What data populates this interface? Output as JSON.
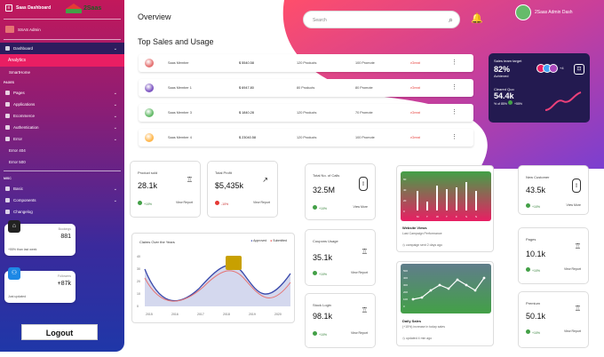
{
  "sidebar": {
    "brand": "Saas Dashboard",
    "user": "SSAS Admin",
    "items": [
      {
        "label": "Dashboard",
        "chev": "⌄"
      },
      {
        "label": "Analytics"
      },
      {
        "label": "SmartHome"
      },
      {
        "label": "PAGES"
      },
      {
        "label": "Pages",
        "chev": "⌄"
      },
      {
        "label": "Applications",
        "chev": "⌄"
      },
      {
        "label": "Ecommerce",
        "chev": "⌄"
      },
      {
        "label": "Authentication",
        "chev": "⌄"
      },
      {
        "label": "Error",
        "chev": "⌄"
      },
      {
        "label": "Error 404"
      },
      {
        "label": "Error 500"
      },
      {
        "label": "MISC"
      },
      {
        "label": "Basic",
        "chev": "⌄"
      },
      {
        "label": "Components",
        "chev": "⌄"
      },
      {
        "label": "Changelog"
      }
    ],
    "card1": {
      "title": "Bookings",
      "value": "881",
      "note": "+55% than last week"
    },
    "card2": {
      "title": "Followers",
      "value": "+87k",
      "note": "Just updated"
    },
    "logout": "Logout"
  },
  "logo": "2Saas",
  "header": {
    "title": "Overview",
    "subtitle": "Top Sales and Usage",
    "search_placeholder": "Search",
    "admin": "2Saas Admin Dash"
  },
  "rows": [
    {
      "name": "Saas Member",
      "amount": "$ 5540.58",
      "v1": "120 Products",
      "v2": "100 Promote",
      "tag": "•Great",
      "color": "#e57373"
    },
    {
      "name": "Saas Member 1",
      "amount": "$ 6947.80",
      "v1": "80 Products",
      "v2": "80 Promote",
      "tag": "•Great",
      "color": "#7e57c2"
    },
    {
      "name": "Saas Member 3",
      "amount": "$ 1840.28",
      "v1": "120 Products",
      "v2": "70 Promote",
      "tag": "•Great",
      "color": "#66bb6a"
    },
    {
      "name": "Saas Member 4",
      "amount": "$ 23040.58",
      "v1": "120 Products",
      "v2": "100 Promote",
      "tag": "•Great",
      "color": "#ffb74d"
    }
  ],
  "team": {
    "title": "Sales team target",
    "pct": "82%",
    "achieved": "Achieved",
    "closed_label": "Cleared Quo",
    "closed_value": "54.4k",
    "closed_note": "% of 85%",
    "badge": "+55%",
    "extra": "+4"
  },
  "kpis": {
    "product_sold": {
      "label": "Product sold",
      "value": "28.1k",
      "pct": "+10%",
      "view": "View Report"
    },
    "total_profit": {
      "label": "Total Profit",
      "value": "$5,435k",
      "pct": "-10%",
      "view": "View Report"
    },
    "total_calls": {
      "label": "Total No. of Calls",
      "value": "32.5M",
      "pct": "+10%",
      "view": "View More"
    },
    "coupons": {
      "label": "Coupons Usage",
      "value": "35.1k",
      "pct": "+10%",
      "view": "View Report"
    },
    "stock": {
      "label": "Stock Login",
      "value": "98.1k",
      "pct": "+10%",
      "view": "View Report"
    },
    "new_customers": {
      "label": "New Customer",
      "value": "43.5k",
      "pct": "+10%",
      "view": "View More"
    },
    "pages": {
      "label": "Pages",
      "value": "10.1k",
      "pct": "+10%",
      "view": "View Report"
    },
    "premium": {
      "label": "Premium",
      "value": "50.1k",
      "pct": "+10%",
      "view": "View Report"
    }
  },
  "claims": {
    "title": "Claims Over the Years",
    "legend": [
      "Approved",
      "Submitted"
    ],
    "yticks": [
      "40",
      "30",
      "20",
      "10",
      "0"
    ],
    "xticks": [
      "2015",
      "2016",
      "2017",
      "2018",
      "2019",
      "2020"
    ]
  },
  "website_views": {
    "title": "Website Views",
    "sub": "Last Campaign Performance",
    "foot": "campaign sent 2 days ago",
    "xticks": [
      "M",
      "T",
      "W",
      "T",
      "F",
      "S",
      "S"
    ],
    "yticks": [
      "60",
      "40",
      "20",
      "0"
    ]
  },
  "daily_sales": {
    "title": "Daily Sales",
    "sub": "(+15%) increase in today sales",
    "foot": "updated 4 min ago",
    "yticks": [
      "500",
      "400",
      "300",
      "200",
      "100",
      "0"
    ]
  }
}
